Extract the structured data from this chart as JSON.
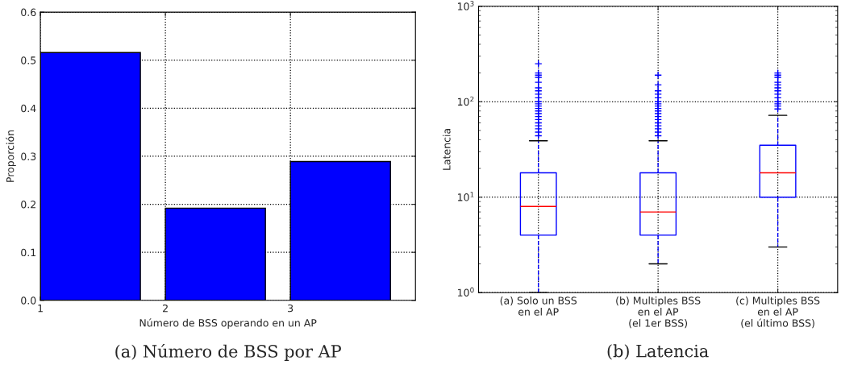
{
  "chart_data": [
    {
      "type": "bar",
      "title": "(a) Número de BSS por AP",
      "xlabel": "Número de BSS operando en un AP",
      "ylabel": "Proporción",
      "x": [
        1.4,
        2.4,
        3.4
      ],
      "values": [
        0.516,
        0.192,
        0.289
      ],
      "color": "#0000ff",
      "xlim": [
        1,
        4
      ],
      "xticks": [
        1,
        2,
        3
      ],
      "ylim": [
        0,
        0.6
      ],
      "yticks": [
        {
          "value": 0,
          "label": "0.0"
        },
        0.1,
        0.2,
        0.3,
        0.4,
        0.5,
        0.6
      ],
      "grid": true
    },
    {
      "type": "box",
      "title": "(b) Latencia",
      "ylabel": "Latencia",
      "log": true,
      "categories": [
        "(a) Solo un BSS\nen el AP",
        "(b) Multiples BSS\nen el AP\n(el 1er BSS)",
        "(c) Multiples BSS\nen el AP\n(el último BSS)"
      ],
      "boxes": [
        {
          "low": 1,
          "q1": 4,
          "median": 8,
          "q3": 18,
          "high": 39,
          "outliers": [
            44,
            48,
            52,
            56,
            60,
            65,
            70,
            75,
            80,
            85,
            90,
            95,
            100,
            110,
            120,
            130,
            140,
            160,
            180,
            190,
            200,
            250
          ]
        },
        {
          "low": 2,
          "q1": 4,
          "median": 7,
          "q3": 18,
          "high": 39,
          "outliers": [
            44,
            48,
            52,
            56,
            60,
            65,
            70,
            75,
            80,
            85,
            90,
            95,
            100,
            110,
            120,
            130,
            150,
            190
          ]
        },
        {
          "low": 3,
          "q1": 10,
          "median": 18,
          "q3": 35,
          "high": 72,
          "outliers": [
            84,
            90,
            95,
            100,
            110,
            120,
            130,
            140,
            150,
            160,
            180,
            190,
            200
          ]
        }
      ],
      "ylim": [
        1,
        1000
      ],
      "yticks": [
        {
          "value": 1,
          "label": "10$^{0}$"
        },
        {
          "value": 10,
          "label": "10$^{1}$"
        },
        {
          "value": 100,
          "label": "10$^{2}$"
        },
        {
          "value": 1000,
          "label": "10$^{3}$"
        }
      ],
      "grid": true
    }
  ]
}
